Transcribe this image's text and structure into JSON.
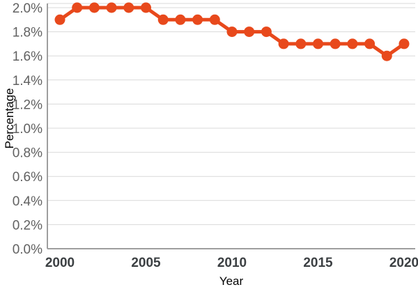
{
  "chart_data": {
    "type": "line",
    "title": "",
    "xlabel": "Year",
    "ylabel": "Percentage",
    "x": [
      2000,
      2001,
      2002,
      2003,
      2004,
      2005,
      2006,
      2007,
      2008,
      2009,
      2010,
      2011,
      2012,
      2013,
      2014,
      2015,
      2016,
      2017,
      2018,
      2019,
      2020
    ],
    "series": [
      {
        "name": "Percentage",
        "color": "#e8491c",
        "values": [
          1.9,
          2.0,
          2.0,
          2.0,
          2.0,
          2.0,
          1.9,
          1.9,
          1.9,
          1.9,
          1.8,
          1.8,
          1.8,
          1.7,
          1.7,
          1.7,
          1.7,
          1.7,
          1.7,
          1.6,
          1.7
        ]
      }
    ],
    "xlim": [
      2000,
      2020
    ],
    "ylim": [
      0,
      2.0
    ],
    "x_ticks": {
      "values": [
        2000,
        2005,
        2010,
        2015,
        2020
      ],
      "labels": [
        "2000",
        "2005",
        "2010",
        "2015",
        "2020"
      ]
    },
    "y_ticks": {
      "values": [
        0.0,
        0.2,
        0.4,
        0.6,
        0.8,
        1.0,
        1.2,
        1.4,
        1.6,
        1.8,
        2.0
      ],
      "labels": [
        "0.0%",
        "0.2%",
        "0.4%",
        "0.6%",
        "0.8%",
        "1.0%",
        "1.2%",
        "1.4%",
        "1.6%",
        "1.8%",
        "2.0%"
      ]
    },
    "grid": true,
    "legend": false,
    "marker": "circle",
    "colors": {
      "line": "#e8491c",
      "grid": "#d9d9d9",
      "axis": "#9e9e9e",
      "x_tick_text": "#3c4043",
      "y_tick_text": "#616161",
      "axis_title_text": "#757575",
      "background": "#ffffff"
    }
  }
}
